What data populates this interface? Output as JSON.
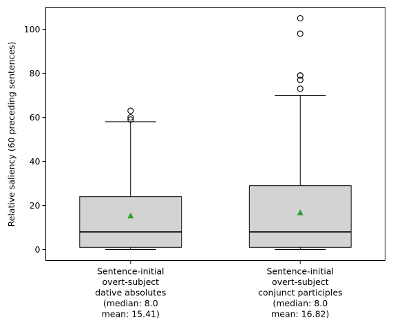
{
  "chart_data": {
    "type": "box",
    "title": "",
    "xlabel": "",
    "ylabel": "Relative saliency (60 preceding sentences)",
    "ylim": [
      -5,
      110
    ],
    "yticks": [
      0,
      20,
      40,
      60,
      80,
      100
    ],
    "grid": false,
    "colors": {
      "box_fill": "#d3d3d3",
      "mean_marker": "#2ca02c",
      "outline": "#000000"
    },
    "boxes": [
      {
        "label_lines": [
          "Sentence-initial",
          "overt-subject",
          "dative absolutes",
          "(median: 8.0",
          "mean: 15.41)"
        ],
        "whisker_low": 0,
        "q1": 1,
        "median": 8,
        "q3": 24,
        "whisker_high": 58,
        "mean": 15.41,
        "outliers": [
          59,
          60,
          63
        ]
      },
      {
        "label_lines": [
          "Sentence-initial",
          "overt-subject",
          "conjunct participles",
          "(median: 8.0",
          "mean: 16.82)"
        ],
        "whisker_low": 0,
        "q1": 1,
        "median": 8,
        "q3": 29,
        "whisker_high": 70,
        "mean": 16.82,
        "outliers": [
          73,
          77,
          79,
          79,
          98,
          105
        ]
      }
    ]
  }
}
